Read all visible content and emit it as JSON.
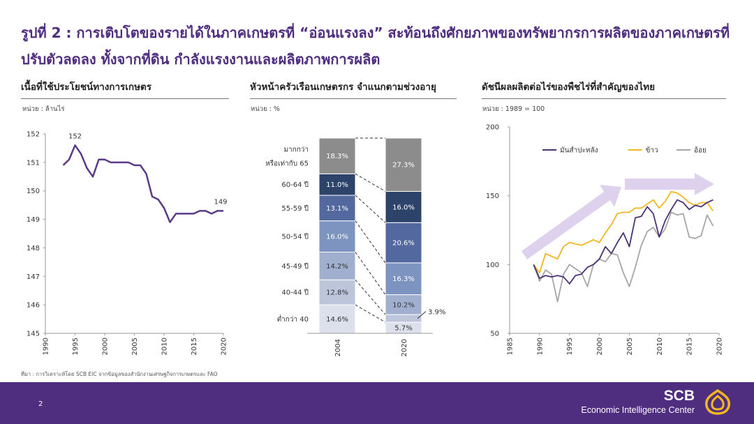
{
  "title": "รูปที่ 2 : การเติบโตของรายได้ในภาคเกษตรที่ “อ่อนแรงลง” สะท้อนถึงศักยภาพของทรัพยากรการผลิตของภาคเกษตรที่ปรับตัวลดลง ทั้งจากที่ดิน กำลังแรงงานและผลิตภาพการผลิต",
  "source": "ที่มา : การวิเคราะห์โดย SCB EIC จากข้อมูลของสำนักงานเศรษฐกิจการเกษตรและ FAO",
  "page_number": "2",
  "brand": {
    "name": "SCB",
    "subtitle": "Economic Intelligence Center"
  },
  "colors": {
    "brand_purple": "#4f2d7f",
    "line_purple": "#5b3a87",
    "rice_gold": "#f0b71f",
    "sugarcane_gray": "#a6a6a6",
    "arrow_lavender": "#d9ccec"
  },
  "chart_data": [
    {
      "type": "line",
      "title": "เนื้อที่ใช้ประโยชน์ทางการเกษตร",
      "unit": "หน่วย : ล้านไร่",
      "xlim": [
        1990,
        2020
      ],
      "ylim": [
        145,
        152
      ],
      "x_ticks": [
        1990,
        1995,
        2000,
        2005,
        2010,
        2015,
        2020
      ],
      "y_ticks": [
        145,
        146,
        147,
        148,
        149,
        150,
        151,
        152
      ],
      "grid": false,
      "annotations": [
        {
          "text": "152",
          "x": 1995,
          "y": 151.6
        },
        {
          "text": "149",
          "x": 2020,
          "y": 149.3
        }
      ],
      "series": [
        {
          "color": "#5b3a87",
          "x": [
            1993,
            1994,
            1995,
            1996,
            1997,
            1998,
            1999,
            2000,
            2001,
            2002,
            2003,
            2004,
            2005,
            2006,
            2007,
            2008,
            2009,
            2010,
            2011,
            2012,
            2013,
            2014,
            2015,
            2016,
            2017,
            2018,
            2019,
            2020
          ],
          "y": [
            150.9,
            151.1,
            151.6,
            151.3,
            150.8,
            150.5,
            151.1,
            151.1,
            151.0,
            151.0,
            151.0,
            151.0,
            150.9,
            150.9,
            150.6,
            149.8,
            149.7,
            149.4,
            148.9,
            149.2,
            149.2,
            149.2,
            149.2,
            149.3,
            149.3,
            149.2,
            149.3,
            149.3
          ]
        }
      ]
    },
    {
      "type": "bar",
      "stacked": true,
      "title": "หัวหน้าครัวเรือนเกษตรกร จำแนกตามช่วงอายุ",
      "unit": "หน่วย : %",
      "categories": [
        "2004",
        "2020"
      ],
      "segments": [
        {
          "label_line1": "ต่ำกว่า 40",
          "label_line2": "",
          "color": "#dbe0eb",
          "values": [
            14.6,
            5.7
          ],
          "text_color": "#333333"
        },
        {
          "label_line1": "40-44 ปี",
          "label_line2": "",
          "color": "#bcc5da",
          "values": [
            12.8,
            3.9
          ],
          "text_color": "#333333"
        },
        {
          "label_line1": "45-49 ปี",
          "label_line2": "",
          "color": "#a0afcd",
          "values": [
            14.2,
            10.2
          ],
          "text_color": "#333333"
        },
        {
          "label_line1": "50-54 ปี",
          "label_line2": "",
          "color": "#7d93c0",
          "values": [
            16.0,
            16.3
          ],
          "text_color": "#ffffff"
        },
        {
          "label_line1": "55-59 ปี",
          "label_line2": "",
          "color": "#52689e",
          "values": [
            13.1,
            20.6
          ],
          "text_color": "#ffffff"
        },
        {
          "label_line1": "60-64 ปี",
          "label_line2": "",
          "color": "#2e4369",
          "values": [
            11.0,
            16.0
          ],
          "text_color": "#ffffff"
        },
        {
          "label_line1": "มากกว่า",
          "label_line2": "หรือเท่ากับ 65",
          "color": "#8c8c8c",
          "values": [
            18.3,
            27.3
          ],
          "text_color": "#ffffff"
        }
      ],
      "value_labels_2020": [
        "5.7%",
        "3.9%",
        "10.2%",
        "16.3%",
        "20.6%",
        "16.0%",
        "27.3%"
      ],
      "value_labels_2004": [
        "14.6%",
        "12.8%",
        "14.2%",
        "16.0%",
        "13.1%",
        "11.0%",
        "18.3%"
      ]
    },
    {
      "type": "line",
      "title": "ดัชนีผลผลิตต่อไร่ของพืชไร่ที่สำคัญของไทย",
      "unit": "หน่วย : 1989 = 100",
      "xlim": [
        1985,
        2020
      ],
      "ylim": [
        50,
        200
      ],
      "x_ticks": [
        1985,
        1990,
        1995,
        2000,
        2005,
        2010,
        2015,
        2020
      ],
      "y_ticks": [
        50,
        100,
        150,
        200
      ],
      "grid": false,
      "legend": "top",
      "x": [
        1989,
        1990,
        1991,
        1992,
        1993,
        1994,
        1995,
        1996,
        1997,
        1998,
        1999,
        2000,
        2001,
        2002,
        2003,
        2004,
        2005,
        2006,
        2007,
        2008,
        2009,
        2010,
        2011,
        2012,
        2013,
        2014,
        2015,
        2016,
        2017,
        2018,
        2019
      ],
      "series": [
        {
          "name": "มันสำปะหลัง",
          "color": "#4a3275",
          "y": [
            100,
            90,
            92,
            91,
            92,
            91,
            86,
            92,
            93,
            98,
            100,
            104,
            113,
            108,
            116,
            123,
            113,
            134,
            135,
            142,
            137,
            120,
            132,
            140,
            147,
            145,
            140,
            143,
            142,
            145,
            147
          ]
        },
        {
          "name": "ข้าว",
          "color": "#f0b71f",
          "y": [
            100,
            94,
            108,
            106,
            104,
            113,
            116,
            115,
            114,
            116,
            118,
            116,
            123,
            129,
            137,
            138,
            138,
            141,
            141,
            144,
            147,
            141,
            146,
            153,
            152,
            149,
            145,
            143,
            145,
            145,
            139
          ]
        },
        {
          "name": "อ้อย",
          "color": "#a6a6a6",
          "y": [
            100,
            88,
            96,
            93,
            73,
            93,
            100,
            97,
            94,
            84,
            100,
            104,
            102,
            108,
            107,
            94,
            84,
            98,
            114,
            124,
            127,
            120,
            126,
            138,
            136,
            137,
            120,
            119,
            121,
            136,
            128
          ]
        }
      ]
    }
  ]
}
